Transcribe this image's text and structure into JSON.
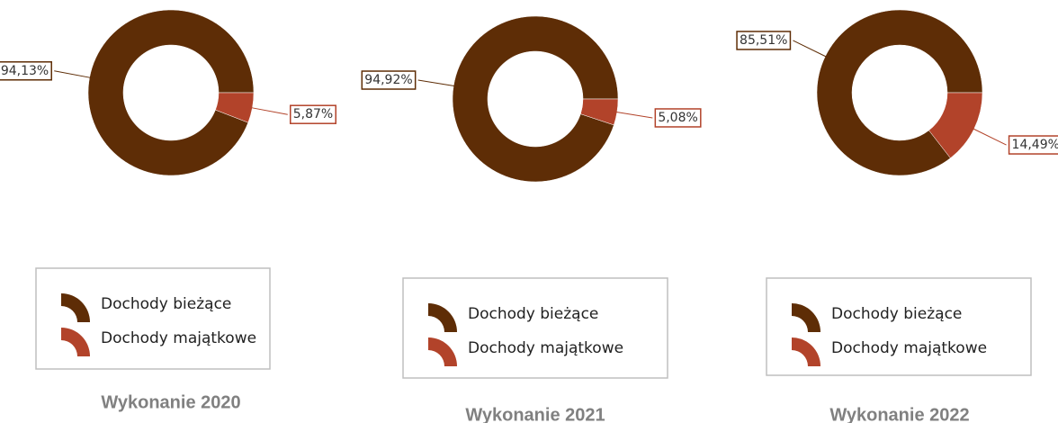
{
  "chart_data": [
    {
      "type": "pie",
      "title": "Wykonanie 2020",
      "categories": [
        "Dochody bieżące",
        "Dochody majątkowe"
      ],
      "values": [
        94.13,
        5.87
      ],
      "value_labels": [
        "94,13%",
        "5,87%"
      ],
      "colors": [
        "#5e2d06",
        "#b2432a"
      ]
    },
    {
      "type": "pie",
      "title": "Wykonanie 2021",
      "categories": [
        "Dochody bieżące",
        "Dochody majątkowe"
      ],
      "values": [
        94.92,
        5.08
      ],
      "value_labels": [
        "94,92%",
        "5,08%"
      ],
      "colors": [
        "#5e2d06",
        "#b2432a"
      ]
    },
    {
      "type": "pie",
      "title": "Wykonanie 2022",
      "categories": [
        "Dochody bieżące",
        "Dochody majątkowe"
      ],
      "values": [
        85.51,
        14.49
      ],
      "value_labels": [
        "85,51%",
        "14,49%"
      ],
      "colors": [
        "#5e2d06",
        "#b2432a"
      ]
    }
  ]
}
